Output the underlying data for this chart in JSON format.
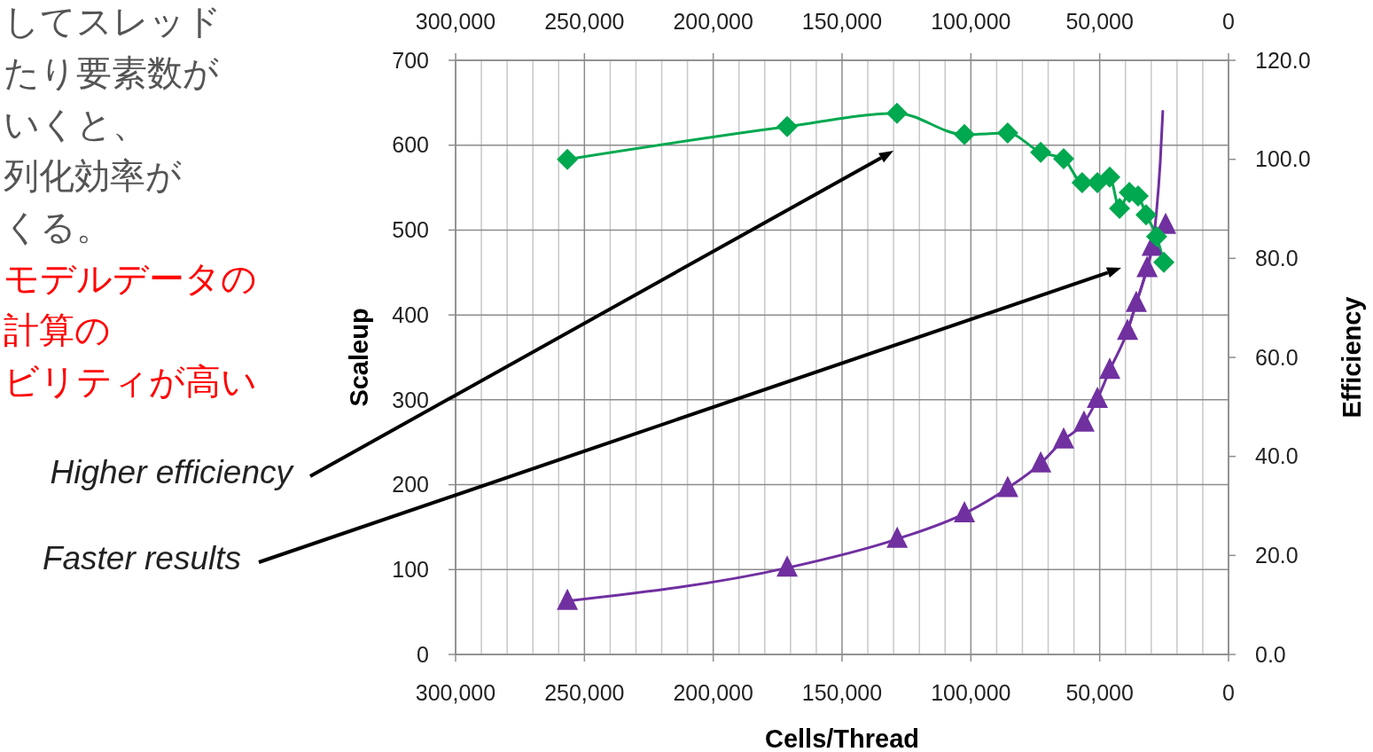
{
  "chart_data": {
    "type": "line",
    "xlabel": "Cells/Thread",
    "ylabel": "Scaleup",
    "y2label": "Efficiency",
    "xlim": [
      300000,
      0
    ],
    "xticks": [
      {
        "value": 300000,
        "label": "300,000"
      },
      {
        "value": 250000,
        "label": "250,000"
      },
      {
        "value": 200000,
        "label": "200,000"
      },
      {
        "value": 150000,
        "label": "150,000"
      },
      {
        "value": 100000,
        "label": "100,000"
      },
      {
        "value": 50000,
        "label": "50,000"
      },
      0
    ],
    "x2lim": [
      300000,
      0
    ],
    "x2ticks": [
      {
        "value": 300000,
        "label": "300,000"
      },
      {
        "value": 250000,
        "label": "250,000"
      },
      {
        "value": 200000,
        "label": "200,000"
      },
      {
        "value": 150000,
        "label": "150,000"
      },
      {
        "value": 100000,
        "label": "100,000"
      },
      {
        "value": 50000,
        "label": "50,000"
      },
      0
    ],
    "ylim": [
      0,
      700
    ],
    "yticks": [
      0,
      100,
      200,
      300,
      400,
      500,
      600,
      700
    ],
    "y2lim": [
      0,
      120
    ],
    "y2ticks": [
      {
        "value": 0,
        "label": "0.0"
      },
      {
        "value": 20,
        "label": "20.0"
      },
      {
        "value": 40,
        "label": "40.0"
      },
      {
        "value": 60,
        "label": "60.0"
      },
      {
        "value": 80,
        "label": "80.0"
      },
      {
        "value": 100,
        "label": "100.0"
      },
      {
        "value": 120,
        "label": "120.0"
      }
    ],
    "grid": true,
    "line_style": "solid",
    "series": [
      {
        "color": "#00a84f",
        "axis": "y2",
        "marker": "diamond",
        "x": [
          256600,
          171300,
          128700,
          102500,
          85700,
          72900,
          64000,
          56800,
          50900,
          46100,
          42300,
          38500,
          35100,
          32000,
          27900,
          25100
        ],
        "values": [
          100,
          106.6,
          109.3,
          105,
          105.3,
          101.4,
          100.1,
          95.3,
          95.3,
          96.4,
          90.1,
          93.3,
          92.6,
          88.8,
          84.4,
          79.2
        ]
      },
      {
        "color": "#7030a0",
        "marker": "triangle",
        "x": [
          256600,
          171300,
          128600,
          102500,
          85700,
          72900,
          64000,
          56100,
          50900,
          46100,
          39200,
          35800,
          31600,
          29600,
          24400
        ],
        "values": [
          63,
          102,
          136,
          166,
          196,
          225,
          253,
          273,
          301,
          335,
          381,
          414,
          455,
          480,
          506
        ]
      },
      {
        "type": "line",
        "color": "#7030a0",
        "marker": "none",
        "x": [
          39200,
          35800,
          31600,
          29600,
          28000,
          26500,
          25500
        ],
        "values": [
          381,
          414,
          455,
          480,
          520,
          580,
          640
        ]
      }
    ],
    "annotations": [
      "Higher efficiency",
      "Faster results",
      "してスレッド",
      "たり要素数が",
      "いくと、",
      "列化効率が",
      "くる。",
      "モデルデータの",
      "計算の",
      "ビリティが高い"
    ]
  }
}
